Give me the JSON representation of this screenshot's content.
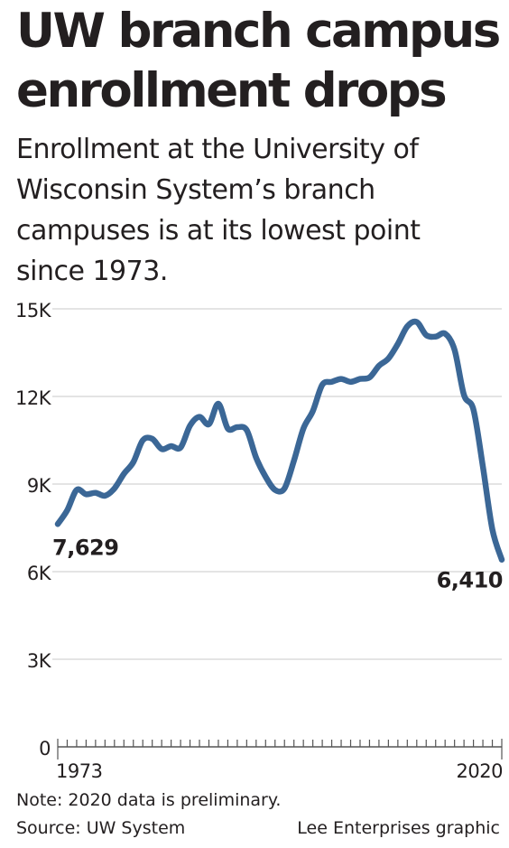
{
  "header": {
    "title_line1": "UW branch campus",
    "title_line2": "enrollment drops",
    "subtitle": "Enrollment at the University of Wisconsin System’s branch campuses is at its lowest point since 1973."
  },
  "footer": {
    "note": "Note: 2020 data is preliminary.",
    "source": "Source: UW System",
    "credit": "Lee Enterprises graphic"
  },
  "colors": {
    "line": "#3b6796",
    "grid": "#c8c8c8",
    "text": "#231f20"
  },
  "chart_data": {
    "type": "line",
    "title": "",
    "xlabel": "",
    "ylabel": "",
    "xlim": [
      1973,
      2020
    ],
    "ylim": [
      0,
      15000
    ],
    "y_ticks": [
      0,
      3000,
      6000,
      9000,
      12000,
      15000
    ],
    "y_tick_labels": [
      "0",
      "3K",
      "6K",
      "9K",
      "12K",
      "15K"
    ],
    "x_tick_labels": [
      "1973",
      "2020"
    ],
    "grid": true,
    "legend": "none",
    "series": [
      {
        "x": [
          1973,
          1974,
          1975,
          1976,
          1977,
          1978,
          1979,
          1980,
          1981,
          1982,
          1983,
          1984,
          1985,
          1986,
          1987,
          1988,
          1989,
          1990,
          1991,
          1992,
          1993,
          1994,
          1995,
          1996,
          1997,
          1998,
          1999,
          2000,
          2001,
          2002,
          2003,
          2004,
          2005,
          2006,
          2007,
          2008,
          2009,
          2010,
          2011,
          2012,
          2013,
          2014,
          2015,
          2016,
          2017,
          2018,
          2019,
          2020
        ],
        "values": [
          7629,
          8100,
          8800,
          8650,
          8700,
          8600,
          8850,
          9350,
          9750,
          10500,
          10550,
          10200,
          10300,
          10250,
          11000,
          11300,
          11050,
          11750,
          10900,
          10950,
          10850,
          9900,
          9250,
          8800,
          8850,
          9800,
          10900,
          11500,
          12400,
          12500,
          12600,
          12500,
          12600,
          12650,
          13050,
          13300,
          13800,
          14400,
          14550,
          14100,
          14050,
          14150,
          13600,
          12050,
          11550,
          9600,
          7450,
          6410
        ]
      }
    ],
    "annotations": [
      {
        "label": "7,629",
        "x": 1973,
        "y": 7629
      },
      {
        "label": "6,410",
        "x": 2020,
        "y": 6410
      }
    ]
  }
}
